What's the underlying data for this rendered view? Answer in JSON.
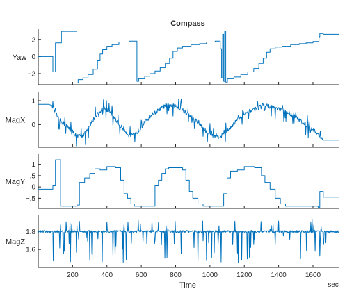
{
  "chart_data": {
    "type": "line",
    "title": "Compass",
    "xlabel": "Time",
    "xunit": "sec",
    "xlim": [
      0,
      1750
    ],
    "xticks": [
      200,
      400,
      600,
      800,
      1000,
      1200,
      1400,
      1600
    ],
    "line_color": "#0072BD",
    "grid": false,
    "panels": [
      {
        "ylabel": "Yaw",
        "ylim": [
          -3.3,
          3.2
        ],
        "yticks": [
          -2,
          0,
          2
        ],
        "shape": "step",
        "points": [
          [
            0,
            0.0
          ],
          [
            85,
            0.0
          ],
          [
            85,
            -1.8
          ],
          [
            100,
            -1.8
          ],
          [
            100,
            1.6
          ],
          [
            135,
            1.6
          ],
          [
            135,
            2.95
          ],
          [
            225,
            2.95
          ],
          [
            225,
            -3.1
          ],
          [
            232,
            -3.1
          ],
          [
            232,
            -2.7
          ],
          [
            260,
            -2.7
          ],
          [
            260,
            -2.5
          ],
          [
            290,
            -2.5
          ],
          [
            290,
            -2.1
          ],
          [
            320,
            -2.1
          ],
          [
            320,
            -1.5
          ],
          [
            345,
            -1.5
          ],
          [
            345,
            -0.5
          ],
          [
            360,
            -0.5
          ],
          [
            360,
            0.3
          ],
          [
            375,
            0.3
          ],
          [
            375,
            0.8
          ],
          [
            400,
            0.8
          ],
          [
            400,
            1.2
          ],
          [
            430,
            1.2
          ],
          [
            430,
            1.4
          ],
          [
            470,
            1.4
          ],
          [
            470,
            1.7
          ],
          [
            530,
            1.7
          ],
          [
            530,
            1.8
          ],
          [
            575,
            1.8
          ],
          [
            575,
            -2.9
          ],
          [
            585,
            -2.9
          ],
          [
            585,
            -2.6
          ],
          [
            620,
            -2.6
          ],
          [
            620,
            -2.3
          ],
          [
            650,
            -2.3
          ],
          [
            650,
            -2.0
          ],
          [
            680,
            -2.0
          ],
          [
            680,
            -1.7
          ],
          [
            710,
            -1.7
          ],
          [
            710,
            -1.3
          ],
          [
            740,
            -1.3
          ],
          [
            740,
            -0.8
          ],
          [
            765,
            -0.8
          ],
          [
            765,
            -0.2
          ],
          [
            785,
            -0.2
          ],
          [
            785,
            0.6
          ],
          [
            810,
            0.6
          ],
          [
            810,
            1.0
          ],
          [
            840,
            1.0
          ],
          [
            840,
            1.2
          ],
          [
            890,
            1.2
          ],
          [
            890,
            1.4
          ],
          [
            940,
            1.4
          ],
          [
            940,
            1.5
          ],
          [
            980,
            1.5
          ],
          [
            980,
            1.7
          ],
          [
            1030,
            1.7
          ],
          [
            1030,
            1.8
          ],
          [
            1060,
            1.8
          ],
          [
            1060,
            0.9
          ],
          [
            1068,
            0.9
          ],
          [
            1068,
            -2.5
          ],
          [
            1074,
            -2.5
          ],
          [
            1074,
            2.6
          ],
          [
            1080,
            2.6
          ],
          [
            1080,
            -2.9
          ],
          [
            1086,
            -2.9
          ],
          [
            1086,
            3.0
          ],
          [
            1092,
            3.0
          ],
          [
            1092,
            -3.0
          ],
          [
            1102,
            -3.0
          ],
          [
            1102,
            -2.6
          ],
          [
            1140,
            -2.6
          ],
          [
            1140,
            -2.4
          ],
          [
            1180,
            -2.4
          ],
          [
            1180,
            -2.1
          ],
          [
            1220,
            -2.1
          ],
          [
            1220,
            -1.8
          ],
          [
            1255,
            -1.8
          ],
          [
            1255,
            -1.4
          ],
          [
            1285,
            -1.4
          ],
          [
            1285,
            -0.8
          ],
          [
            1310,
            -0.8
          ],
          [
            1310,
            -0.2
          ],
          [
            1330,
            -0.2
          ],
          [
            1330,
            0.5
          ],
          [
            1350,
            0.5
          ],
          [
            1350,
            0.9
          ],
          [
            1380,
            0.9
          ],
          [
            1380,
            1.1
          ],
          [
            1420,
            1.1
          ],
          [
            1420,
            1.2
          ],
          [
            1470,
            1.2
          ],
          [
            1470,
            1.4
          ],
          [
            1520,
            1.4
          ],
          [
            1520,
            1.5
          ],
          [
            1560,
            1.5
          ],
          [
            1560,
            1.6
          ],
          [
            1600,
            1.6
          ],
          [
            1600,
            1.75
          ],
          [
            1635,
            1.75
          ],
          [
            1635,
            2.3
          ],
          [
            1640,
            2.3
          ],
          [
            1640,
            2.7
          ],
          [
            1660,
            2.7
          ],
          [
            1660,
            2.6
          ],
          [
            1750,
            2.6
          ]
        ]
      },
      {
        "ylabel": "MagX",
        "ylim": [
          -0.95,
          1.35
        ],
        "yticks": [
          0,
          1
        ],
        "shape": "noisy",
        "points": [
          [
            0,
            0.85
          ],
          [
            60,
            0.85
          ],
          [
            80,
            0.8
          ],
          [
            100,
            0.5
          ],
          [
            120,
            0.2
          ],
          [
            140,
            0.1
          ],
          [
            170,
            -0.1
          ],
          [
            200,
            -0.3
          ],
          [
            230,
            -0.5
          ],
          [
            260,
            -0.45
          ],
          [
            290,
            -0.2
          ],
          [
            320,
            0.2
          ],
          [
            350,
            0.5
          ],
          [
            380,
            0.7
          ],
          [
            410,
            0.6
          ],
          [
            440,
            0.3
          ],
          [
            470,
            0.0
          ],
          [
            500,
            -0.2
          ],
          [
            530,
            -0.45
          ],
          [
            560,
            -0.45
          ],
          [
            590,
            -0.2
          ],
          [
            620,
            0.1
          ],
          [
            660,
            0.4
          ],
          [
            700,
            0.6
          ],
          [
            740,
            0.8
          ],
          [
            780,
            0.8
          ],
          [
            820,
            0.7
          ],
          [
            860,
            0.5
          ],
          [
            900,
            0.3
          ],
          [
            940,
            0.0
          ],
          [
            980,
            -0.3
          ],
          [
            1020,
            -0.45
          ],
          [
            1060,
            -0.5
          ],
          [
            1090,
            -0.35
          ],
          [
            1120,
            -0.1
          ],
          [
            1160,
            0.2
          ],
          [
            1200,
            0.4
          ],
          [
            1240,
            0.6
          ],
          [
            1280,
            0.7
          ],
          [
            1320,
            0.8
          ],
          [
            1360,
            0.75
          ],
          [
            1400,
            0.65
          ],
          [
            1440,
            0.55
          ],
          [
            1480,
            0.4
          ],
          [
            1520,
            0.2
          ],
          [
            1560,
            0.0
          ],
          [
            1600,
            -0.2
          ],
          [
            1640,
            -0.5
          ],
          [
            1660,
            -0.65
          ],
          [
            1700,
            -0.65
          ],
          [
            1750,
            -0.65
          ]
        ]
      },
      {
        "ylabel": "MagY",
        "ylim": [
          -0.95,
          1.45
        ],
        "yticks": [
          -0.5,
          0,
          0.5,
          1
        ],
        "shape": "step",
        "points": [
          [
            0,
            -0.1
          ],
          [
            85,
            -0.1
          ],
          [
            85,
            0.05
          ],
          [
            100,
            0.05
          ],
          [
            100,
            1.2
          ],
          [
            130,
            1.2
          ],
          [
            130,
            -0.85
          ],
          [
            225,
            -0.85
          ],
          [
            225,
            -0.8
          ],
          [
            240,
            -0.8
          ],
          [
            240,
            0.2
          ],
          [
            270,
            0.2
          ],
          [
            270,
            0.4
          ],
          [
            300,
            0.4
          ],
          [
            300,
            0.6
          ],
          [
            330,
            0.6
          ],
          [
            330,
            0.8
          ],
          [
            360,
            0.8
          ],
          [
            360,
            0.75
          ],
          [
            400,
            0.75
          ],
          [
            400,
            0.9
          ],
          [
            450,
            0.9
          ],
          [
            450,
            0.85
          ],
          [
            480,
            0.85
          ],
          [
            480,
            0.3
          ],
          [
            500,
            0.3
          ],
          [
            500,
            -0.3
          ],
          [
            520,
            -0.3
          ],
          [
            520,
            -0.5
          ],
          [
            540,
            -0.5
          ],
          [
            540,
            -0.75
          ],
          [
            560,
            -0.75
          ],
          [
            560,
            -0.85
          ],
          [
            680,
            -0.85
          ],
          [
            680,
            0.05
          ],
          [
            700,
            0.05
          ],
          [
            700,
            0.3
          ],
          [
            720,
            0.3
          ],
          [
            720,
            0.6
          ],
          [
            740,
            0.6
          ],
          [
            740,
            0.8
          ],
          [
            760,
            0.8
          ],
          [
            760,
            0.85
          ],
          [
            840,
            0.85
          ],
          [
            840,
            0.75
          ],
          [
            860,
            0.75
          ],
          [
            860,
            0.3
          ],
          [
            880,
            0.3
          ],
          [
            880,
            -0.2
          ],
          [
            900,
            -0.2
          ],
          [
            900,
            -0.5
          ],
          [
            930,
            -0.5
          ],
          [
            930,
            -0.75
          ],
          [
            960,
            -0.75
          ],
          [
            960,
            -0.85
          ],
          [
            1080,
            -0.85
          ],
          [
            1080,
            -0.3
          ],
          [
            1100,
            -0.3
          ],
          [
            1100,
            0.4
          ],
          [
            1120,
            0.4
          ],
          [
            1120,
            0.7
          ],
          [
            1160,
            0.7
          ],
          [
            1160,
            0.75
          ],
          [
            1200,
            0.75
          ],
          [
            1200,
            0.9
          ],
          [
            1260,
            0.9
          ],
          [
            1260,
            0.85
          ],
          [
            1300,
            0.85
          ],
          [
            1300,
            0.5
          ],
          [
            1320,
            0.5
          ],
          [
            1320,
            0.2
          ],
          [
            1350,
            0.2
          ],
          [
            1350,
            -0.1
          ],
          [
            1380,
            -0.1
          ],
          [
            1380,
            -0.5
          ],
          [
            1410,
            -0.5
          ],
          [
            1410,
            -0.75
          ],
          [
            1440,
            -0.75
          ],
          [
            1440,
            -0.85
          ],
          [
            1630,
            -0.85
          ],
          [
            1630,
            -0.9
          ],
          [
            1640,
            -0.9
          ],
          [
            1640,
            -0.2
          ],
          [
            1660,
            -0.2
          ],
          [
            1660,
            -0.45
          ],
          [
            1750,
            -0.45
          ]
        ]
      },
      {
        "ylabel": "MagZ",
        "ylim": [
          1.4,
          1.98
        ],
        "yticks": [
          1.6,
          1.8
        ],
        "shape": "spiky",
        "points": [
          [
            0,
            1.8
          ],
          [
            1750,
            1.8
          ]
        ]
      }
    ]
  }
}
